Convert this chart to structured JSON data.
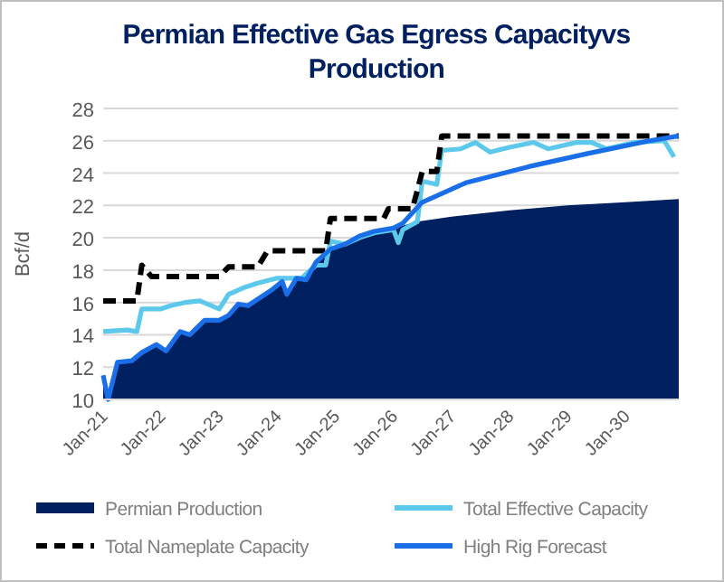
{
  "chart_data": {
    "type": "line",
    "title": "Permian Effective Gas Egress Capacityvs Production",
    "ylabel": "Bcf/d",
    "ylim": [
      10,
      28
    ],
    "yticks": [
      10,
      12,
      14,
      16,
      18,
      20,
      22,
      24,
      26,
      28
    ],
    "grid": "y",
    "legend": "bottom",
    "marker": "none",
    "xlim": [
      "2021-01",
      "2030-12"
    ],
    "xticks": [
      {
        "value": "2021-01",
        "label": "Jan-21"
      },
      {
        "value": "2022-01",
        "label": "Jan-22"
      },
      {
        "value": "2023-01",
        "label": "Jan-23"
      },
      {
        "value": "2024-01",
        "label": "Jan-24"
      },
      {
        "value": "2025-01",
        "label": "Jan-25"
      },
      {
        "value": "2026-01",
        "label": "Jan-26"
      },
      {
        "value": "2027-01",
        "label": "Jan-27"
      },
      {
        "value": "2028-01",
        "label": "Jan-28"
      },
      {
        "value": "2029-01",
        "label": "Jan-29"
      },
      {
        "value": "2030-01",
        "label": "Jan-30"
      }
    ],
    "series": [
      {
        "name": "Permian Production",
        "type": "area",
        "color": "#002060",
        "x": [
          "2021-01",
          "2021-02",
          "2021-04",
          "2021-07",
          "2021-09",
          "2021-12",
          "2022-02",
          "2022-05",
          "2022-07",
          "2022-10",
          "2023-01",
          "2023-03",
          "2023-05",
          "2023-07",
          "2023-10",
          "2023-12",
          "2024-02",
          "2024-03",
          "2024-05",
          "2024-07",
          "2024-09",
          "2024-12",
          "2025-03",
          "2025-06",
          "2025-09",
          "2026-01",
          "2026-06",
          "2027-01",
          "2028-01",
          "2029-01",
          "2030-01",
          "2030-12"
        ],
        "values": [
          11.5,
          10,
          12.3,
          12.4,
          12.9,
          13.4,
          13.0,
          14.2,
          14.0,
          14.9,
          14.9,
          15.2,
          15.9,
          15.8,
          16.4,
          16.8,
          17.3,
          16.5,
          17.5,
          17.4,
          18.5,
          19.3,
          19.6,
          20.1,
          20.4,
          20.6,
          21.0,
          21.3,
          21.7,
          22.0,
          22.2,
          22.4
        ]
      },
      {
        "name": "Total Effective Capacity",
        "color": "#5bc8ec",
        "line_style": "solid",
        "x": [
          "2021-01",
          "2021-06",
          "2021-08",
          "2021-09",
          "2022-01",
          "2022-03",
          "2022-06",
          "2022-09",
          "2023-01",
          "2023-03",
          "2023-06",
          "2023-09",
          "2024-01",
          "2024-06",
          "2024-09",
          "2024-11",
          "2024-12",
          "2025-03",
          "2025-06",
          "2025-09",
          "2026-01",
          "2026-02",
          "2026-03",
          "2026-06",
          "2026-07",
          "2026-10",
          "2026-11",
          "2027-03",
          "2027-06",
          "2027-09",
          "2028-01",
          "2028-06",
          "2028-09",
          "2029-03",
          "2029-06",
          "2029-09",
          "2030-03",
          "2030-09",
          "2030-11"
        ],
        "values": [
          14.2,
          14.3,
          14.2,
          15.6,
          15.6,
          15.8,
          16.0,
          16.1,
          15.6,
          16.5,
          16.9,
          17.2,
          17.5,
          17.5,
          18.3,
          18.3,
          19.8,
          19.6,
          20.0,
          20.3,
          20.5,
          19.7,
          20.5,
          21.0,
          23.5,
          23.3,
          25.4,
          25.5,
          25.9,
          25.3,
          25.6,
          25.9,
          25.5,
          25.9,
          25.9,
          25.5,
          25.9,
          26.0,
          25.0
        ]
      },
      {
        "name": "Total Nameplate Capacity",
        "color": "#000000",
        "line_style": "dashed",
        "x": [
          "2021-01",
          "2021-08",
          "2021-09",
          "2021-11",
          "2023-01",
          "2023-03",
          "2023-09",
          "2023-11",
          "2024-11",
          "2024-12",
          "2025-11",
          "2025-12",
          "2026-05",
          "2026-07",
          "2026-10",
          "2026-11",
          "2030-12"
        ],
        "values": [
          16.1,
          16.1,
          18.3,
          17.6,
          17.6,
          18.2,
          18.2,
          19.2,
          19.2,
          21.2,
          21.2,
          21.8,
          21.8,
          24.1,
          24.1,
          26.3,
          26.3
        ]
      },
      {
        "name": "High Rig Forecast",
        "color": "#1a6fe8",
        "line_style": "solid",
        "x": [
          "2021-01",
          "2021-02",
          "2021-04",
          "2021-07",
          "2021-09",
          "2021-12",
          "2022-02",
          "2022-05",
          "2022-07",
          "2022-10",
          "2023-01",
          "2023-03",
          "2023-05",
          "2023-07",
          "2023-10",
          "2023-12",
          "2024-02",
          "2024-03",
          "2024-05",
          "2024-07",
          "2024-09",
          "2024-12",
          "2025-03",
          "2025-06",
          "2025-09",
          "2026-01",
          "2026-03",
          "2026-07",
          "2027-04",
          "2028-05",
          "2029-05",
          "2030-06",
          "2030-12"
        ],
        "values": [
          11.5,
          10,
          12.3,
          12.4,
          12.9,
          13.4,
          13.0,
          14.2,
          14.0,
          14.9,
          14.9,
          15.2,
          15.9,
          15.8,
          16.4,
          16.8,
          17.3,
          16.5,
          17.5,
          17.4,
          18.5,
          19.3,
          19.6,
          20.1,
          20.4,
          20.6,
          20.9,
          22.2,
          23.4,
          24.4,
          25.2,
          26.0,
          26.3
        ]
      }
    ]
  }
}
